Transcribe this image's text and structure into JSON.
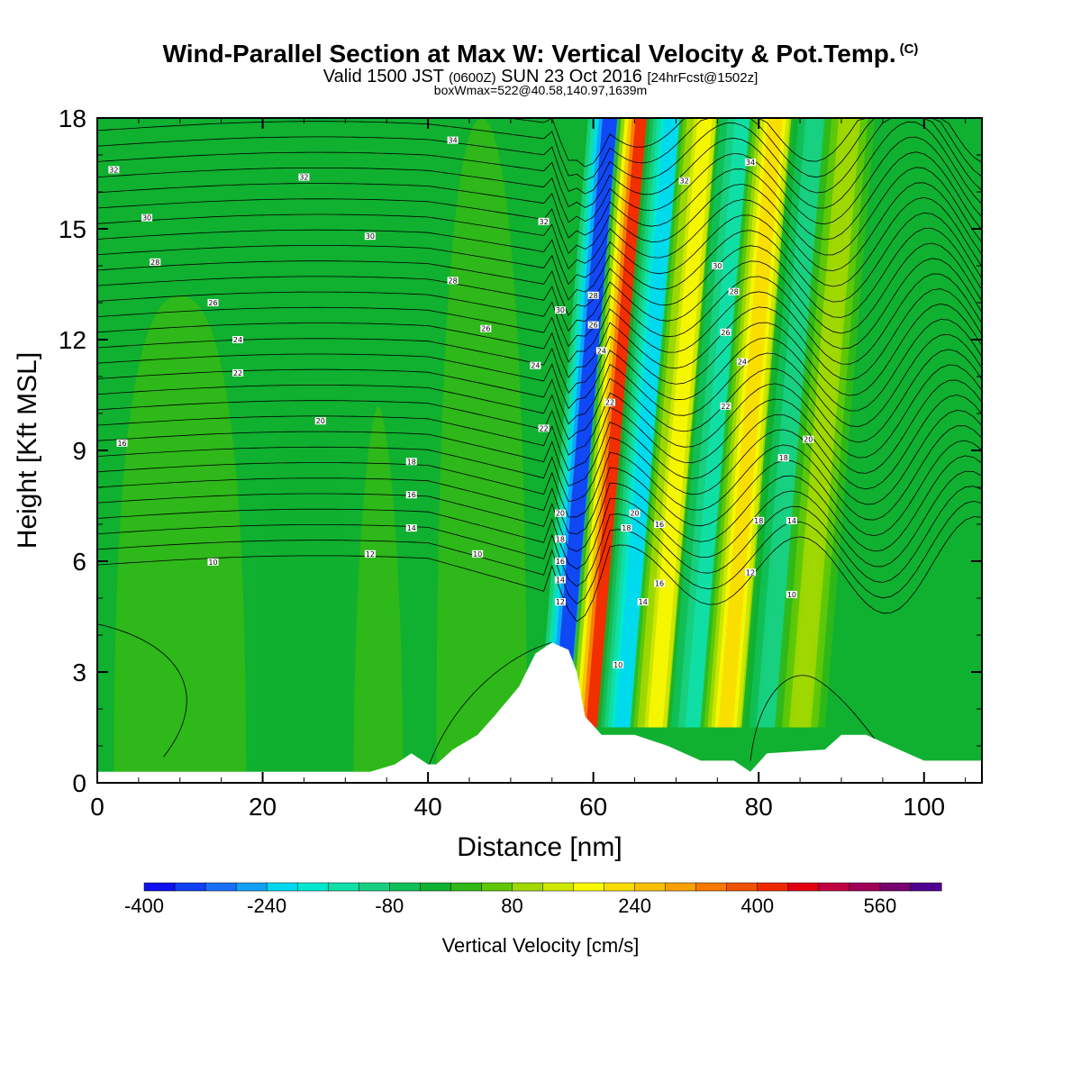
{
  "header": {
    "title": "Wind-Parallel Section at Max W: Vertical Velocity & Pot.Temp.",
    "title_mark": "(C)",
    "valid_prefix": "Valid 1500 JST",
    "valid_utc": "(0600Z)",
    "valid_date": "SUN 23 Oct 2016",
    "forecast": "[24hrFcst@1502z]",
    "box_info": "boxWmax=522@40.58,140.97,1639m"
  },
  "chart_data": {
    "type": "heatmap",
    "xlabel": "Distance [nm]",
    "ylabel": "Height [Kft MSL]",
    "xlim": [
      0,
      107
    ],
    "ylim": [
      0,
      18
    ],
    "x_ticks": [
      0,
      20,
      40,
      60,
      80,
      100
    ],
    "y_ticks": [
      0,
      3,
      6,
      9,
      12,
      15,
      18
    ],
    "grid": false,
    "colorbar": {
      "title": "Vertical Velocity [cm/s]",
      "min": -400,
      "max": 640,
      "step": 40,
      "tick_labels": [
        -400,
        -240,
        -80,
        80,
        240,
        400,
        560
      ],
      "colors": [
        "#1010ee",
        "#1040f4",
        "#1870f8",
        "#10a0f8",
        "#00d8f0",
        "#00e8d0",
        "#10e0a8",
        "#18d080",
        "#10c058",
        "#10b030",
        "#30b818",
        "#60c808",
        "#a0d800",
        "#d0e800",
        "#f8f800",
        "#f8dc00",
        "#f8c000",
        "#f8a000",
        "#f87800",
        "#f05000",
        "#f02800",
        "#e00010",
        "#c00040",
        "#a00058",
        "#780070",
        "#500090"
      ]
    },
    "wmax_cms": 522,
    "wmax_location": "40.58,140.97",
    "wmax_height_m": 1639,
    "terrain_kft": [
      [
        0,
        0.3
      ],
      [
        33,
        0.3
      ],
      [
        36,
        0.5
      ],
      [
        38,
        0.8
      ],
      [
        40,
        0.5
      ],
      [
        41,
        0.5
      ],
      [
        43,
        0.9
      ],
      [
        46,
        1.3
      ],
      [
        48,
        1.8
      ],
      [
        51,
        2.6
      ],
      [
        53,
        3.5
      ],
      [
        55,
        3.8
      ],
      [
        57,
        3.6
      ],
      [
        58,
        3.0
      ],
      [
        59,
        1.8
      ],
      [
        61,
        1.3
      ],
      [
        65,
        1.3
      ],
      [
        69,
        1.0
      ],
      [
        73,
        0.6
      ],
      [
        77,
        0.6
      ],
      [
        79,
        0.3
      ],
      [
        81,
        0.8
      ],
      [
        88,
        0.9
      ],
      [
        90,
        1.3
      ],
      [
        93,
        1.3
      ],
      [
        97,
        0.9
      ],
      [
        100,
        0.6
      ],
      [
        107,
        0.6
      ]
    ],
    "w_features": [
      {
        "x_bottom": 56.0,
        "x_top": 62.0,
        "w": -400,
        "label": "downdraft"
      },
      {
        "x_bottom": 60.0,
        "x_top": 66.0,
        "w": 500,
        "label": "updraft"
      },
      {
        "x_bottom": 63.5,
        "x_top": 69.5,
        "w": -240,
        "label": "downdraft"
      },
      {
        "x_bottom": 67.5,
        "x_top": 73.5,
        "w": 200,
        "label": "updraft"
      },
      {
        "x_bottom": 72.0,
        "x_top": 78.0,
        "w": -160,
        "label": "downdraft"
      },
      {
        "x_bottom": 76.0,
        "x_top": 82.0,
        "w": 240,
        "label": "updraft"
      },
      {
        "x_bottom": 81.0,
        "x_top": 87.0,
        "w": -120,
        "label": "downdraft"
      },
      {
        "x_bottom": 85.0,
        "x_top": 91.0,
        "w": 120,
        "label": "updraft"
      }
    ],
    "theta_contour_labels": [
      {
        "value": "10",
        "x": 14,
        "y": 5.98
      },
      {
        "value": "12",
        "x": 33,
        "y": 6.2
      },
      {
        "value": "10",
        "x": 46,
        "y": 6.2
      },
      {
        "value": "14",
        "x": 38,
        "y": 6.9
      },
      {
        "value": "16",
        "x": 38,
        "y": 7.8
      },
      {
        "value": "18",
        "x": 38,
        "y": 8.7
      },
      {
        "value": "16",
        "x": 3,
        "y": 9.2
      },
      {
        "value": "20",
        "x": 27,
        "y": 9.8
      },
      {
        "value": "22",
        "x": 17,
        "y": 11.1
      },
      {
        "value": "24",
        "x": 17,
        "y": 12.0
      },
      {
        "value": "26",
        "x": 14,
        "y": 13.0
      },
      {
        "value": "28",
        "x": 7,
        "y": 14.1
      },
      {
        "value": "30",
        "x": 6,
        "y": 15.3
      },
      {
        "value": "32",
        "x": 2,
        "y": 16.6
      },
      {
        "value": "32",
        "x": 25,
        "y": 16.4
      },
      {
        "value": "30",
        "x": 33,
        "y": 14.8
      },
      {
        "value": "28",
        "x": 43,
        "y": 13.6
      },
      {
        "value": "26",
        "x": 47,
        "y": 12.3
      },
      {
        "value": "34",
        "x": 43,
        "y": 17.4
      },
      {
        "value": "32",
        "x": 54,
        "y": 15.2
      },
      {
        "value": "30",
        "x": 56,
        "y": 12.8
      },
      {
        "value": "24",
        "x": 53,
        "y": 11.3
      },
      {
        "value": "22",
        "x": 54,
        "y": 9.6
      },
      {
        "value": "20",
        "x": 56,
        "y": 7.3
      },
      {
        "value": "18",
        "x": 56,
        "y": 6.6
      },
      {
        "value": "16",
        "x": 56,
        "y": 6.0
      },
      {
        "value": "14",
        "x": 56,
        "y": 5.5
      },
      {
        "value": "12",
        "x": 56,
        "y": 4.9
      },
      {
        "value": "28",
        "x": 60,
        "y": 13.2
      },
      {
        "value": "26",
        "x": 60,
        "y": 12.4
      },
      {
        "value": "24",
        "x": 61,
        "y": 11.7
      },
      {
        "value": "22",
        "x": 62,
        "y": 10.3
      },
      {
        "value": "20",
        "x": 65,
        "y": 7.3
      },
      {
        "value": "18",
        "x": 64,
        "y": 6.9
      },
      {
        "value": "16",
        "x": 68,
        "y": 7.0
      },
      {
        "value": "14",
        "x": 66,
        "y": 4.9
      },
      {
        "value": "16",
        "x": 68,
        "y": 5.4
      },
      {
        "value": "10",
        "x": 63,
        "y": 3.2
      },
      {
        "value": "32",
        "x": 71,
        "y": 16.3
      },
      {
        "value": "30",
        "x": 75,
        "y": 14.0
      },
      {
        "value": "28",
        "x": 77,
        "y": 13.3
      },
      {
        "value": "26",
        "x": 76,
        "y": 12.2
      },
      {
        "value": "24",
        "x": 78,
        "y": 11.4
      },
      {
        "value": "22",
        "x": 76,
        "y": 10.2
      },
      {
        "value": "34",
        "x": 79,
        "y": 16.8
      },
      {
        "value": "20",
        "x": 86,
        "y": 9.3
      },
      {
        "value": "18",
        "x": 83,
        "y": 8.8
      },
      {
        "value": "18",
        "x": 80,
        "y": 7.1
      },
      {
        "value": "14",
        "x": 84,
        "y": 7.1
      },
      {
        "value": "12",
        "x": 79,
        "y": 5.7
      },
      {
        "value": "10",
        "x": 84,
        "y": 5.1
      }
    ]
  }
}
